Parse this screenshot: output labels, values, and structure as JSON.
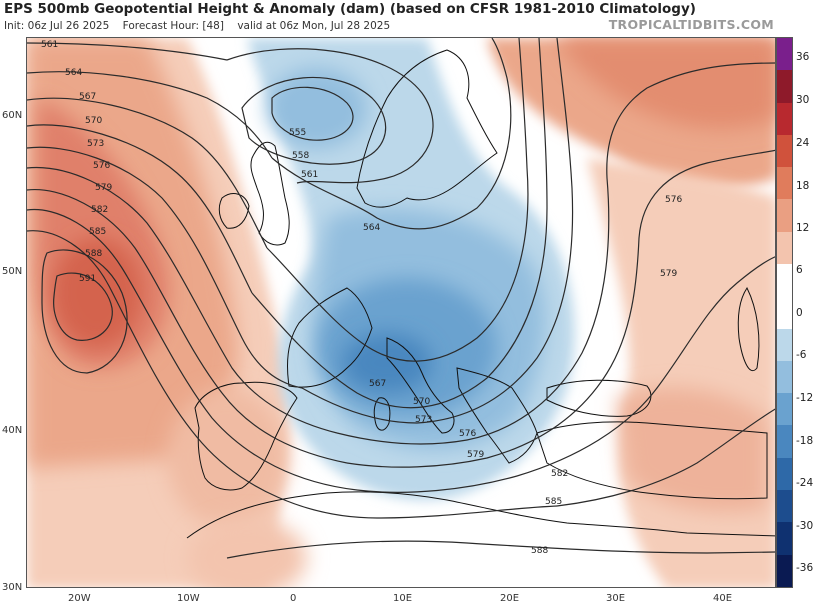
{
  "header": {
    "title": "EPS 500mb Geopotential Height & Anomaly (dam) (based on CFSR 1981-2010 Climatology)",
    "init": "Init: 06z Jul 26 2025",
    "forecast_hour": "Forecast Hour: [48]",
    "valid": "valid at 06z Mon, Jul 28 2025",
    "credit": "TROPICALTIDBITS.COM"
  },
  "axes": {
    "lat_labels": [
      "60N",
      "50N",
      "40N",
      "30N"
    ],
    "lon_labels": [
      "20W",
      "10W",
      "0",
      "10E",
      "20E",
      "30E",
      "40E"
    ]
  },
  "colorbar": {
    "labels": [
      "36",
      "30",
      "24",
      "18",
      "12",
      "6",
      "0",
      "-6",
      "-12",
      "-18",
      "-24",
      "-30",
      "-36"
    ],
    "colors": [
      "#7a1f8c",
      "#8e1a2a",
      "#b8292f",
      "#d0523c",
      "#e07c5c",
      "#ea9f82",
      "#f3c4ae",
      "#ffffff",
      "#ffffff",
      "#bcd8ea",
      "#93bede",
      "#6aa2cf",
      "#4a87bf",
      "#2e69a8",
      "#1d4d8e",
      "#0f3170",
      "#0a1a52"
    ]
  },
  "contours": {
    "labels": [
      "561",
      "564",
      "567",
      "570",
      "573",
      "576",
      "579",
      "582",
      "585",
      "588",
      "591",
      "555",
      "558",
      "561",
      "564",
      "567",
      "570",
      "573",
      "576",
      "579",
      "582",
      "585",
      "588",
      "576",
      "579"
    ]
  }
}
